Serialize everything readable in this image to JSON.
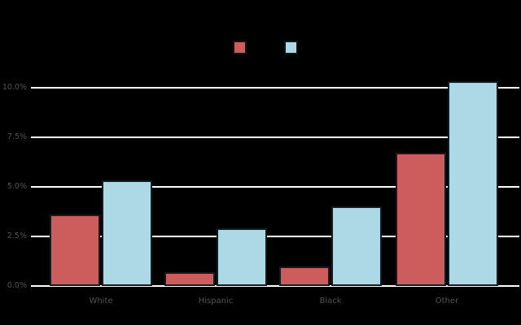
{
  "page": {
    "background": "#000000"
  },
  "legend": {
    "position": "top-center",
    "items": [
      {
        "name": "red-series-swatch",
        "label": "",
        "color": "#cd5c5c"
      },
      {
        "name": "blue-series-swatch",
        "label": "",
        "color": "#add8e6"
      }
    ]
  },
  "chart_data": {
    "type": "bar",
    "title": "",
    "xlabel": "",
    "ylabel": "",
    "categories": [
      "White",
      "Hispanic",
      "Black",
      "Other"
    ],
    "series": [
      {
        "name": "red",
        "color": "#cd5c5c",
        "values": [
          3.6,
          0.7,
          1.0,
          6.7
        ]
      },
      {
        "name": "blue",
        "color": "#add8e6",
        "values": [
          5.3,
          2.9,
          4.0,
          10.3
        ]
      }
    ],
    "yticks": [
      "0.0%",
      "2.5%",
      "5.0%",
      "7.5%",
      "10.0%"
    ],
    "ytick_values": [
      0,
      2.5,
      5.0,
      7.5,
      10.0
    ],
    "ylim": [
      0,
      10.5
    ],
    "grid": true,
    "gridline_color": "#ffffff",
    "tick_label_color": "#535353",
    "bar_edge_color": "#141a20",
    "legend_position": "top-center"
  }
}
